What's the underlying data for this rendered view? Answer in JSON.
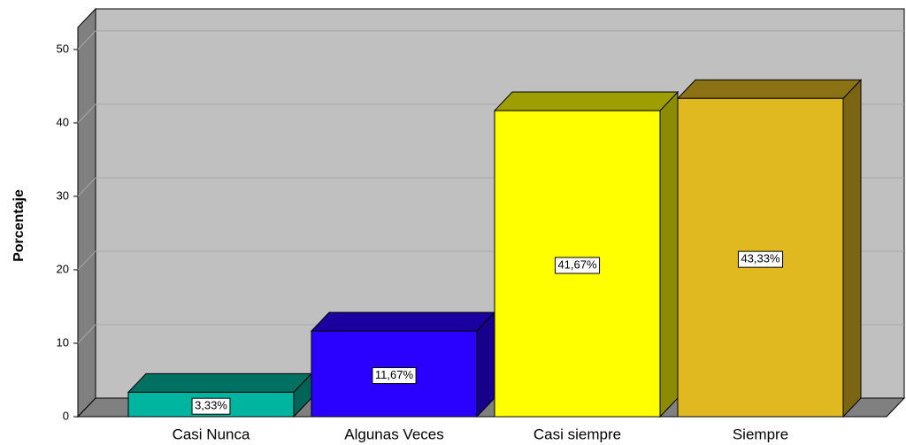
{
  "chart_data": {
    "type": "bar3d",
    "y_label": "Porcentaje",
    "categories": [
      "Casi Nunca",
      "Algunas Veces",
      "Casi siempre",
      "Siempre"
    ],
    "values": [
      3.33,
      11.67,
      41.67,
      43.33
    ],
    "value_labels": [
      "3,33%",
      "11,67%",
      "41,67%",
      "43,33%"
    ],
    "colors": [
      "#00b5a0",
      "#2a00ff",
      "#ffff00",
      "#e0b820"
    ],
    "ylim": [
      0,
      53
    ],
    "yticks": [
      0,
      10,
      20,
      30,
      40,
      50
    ],
    "grid": true
  }
}
